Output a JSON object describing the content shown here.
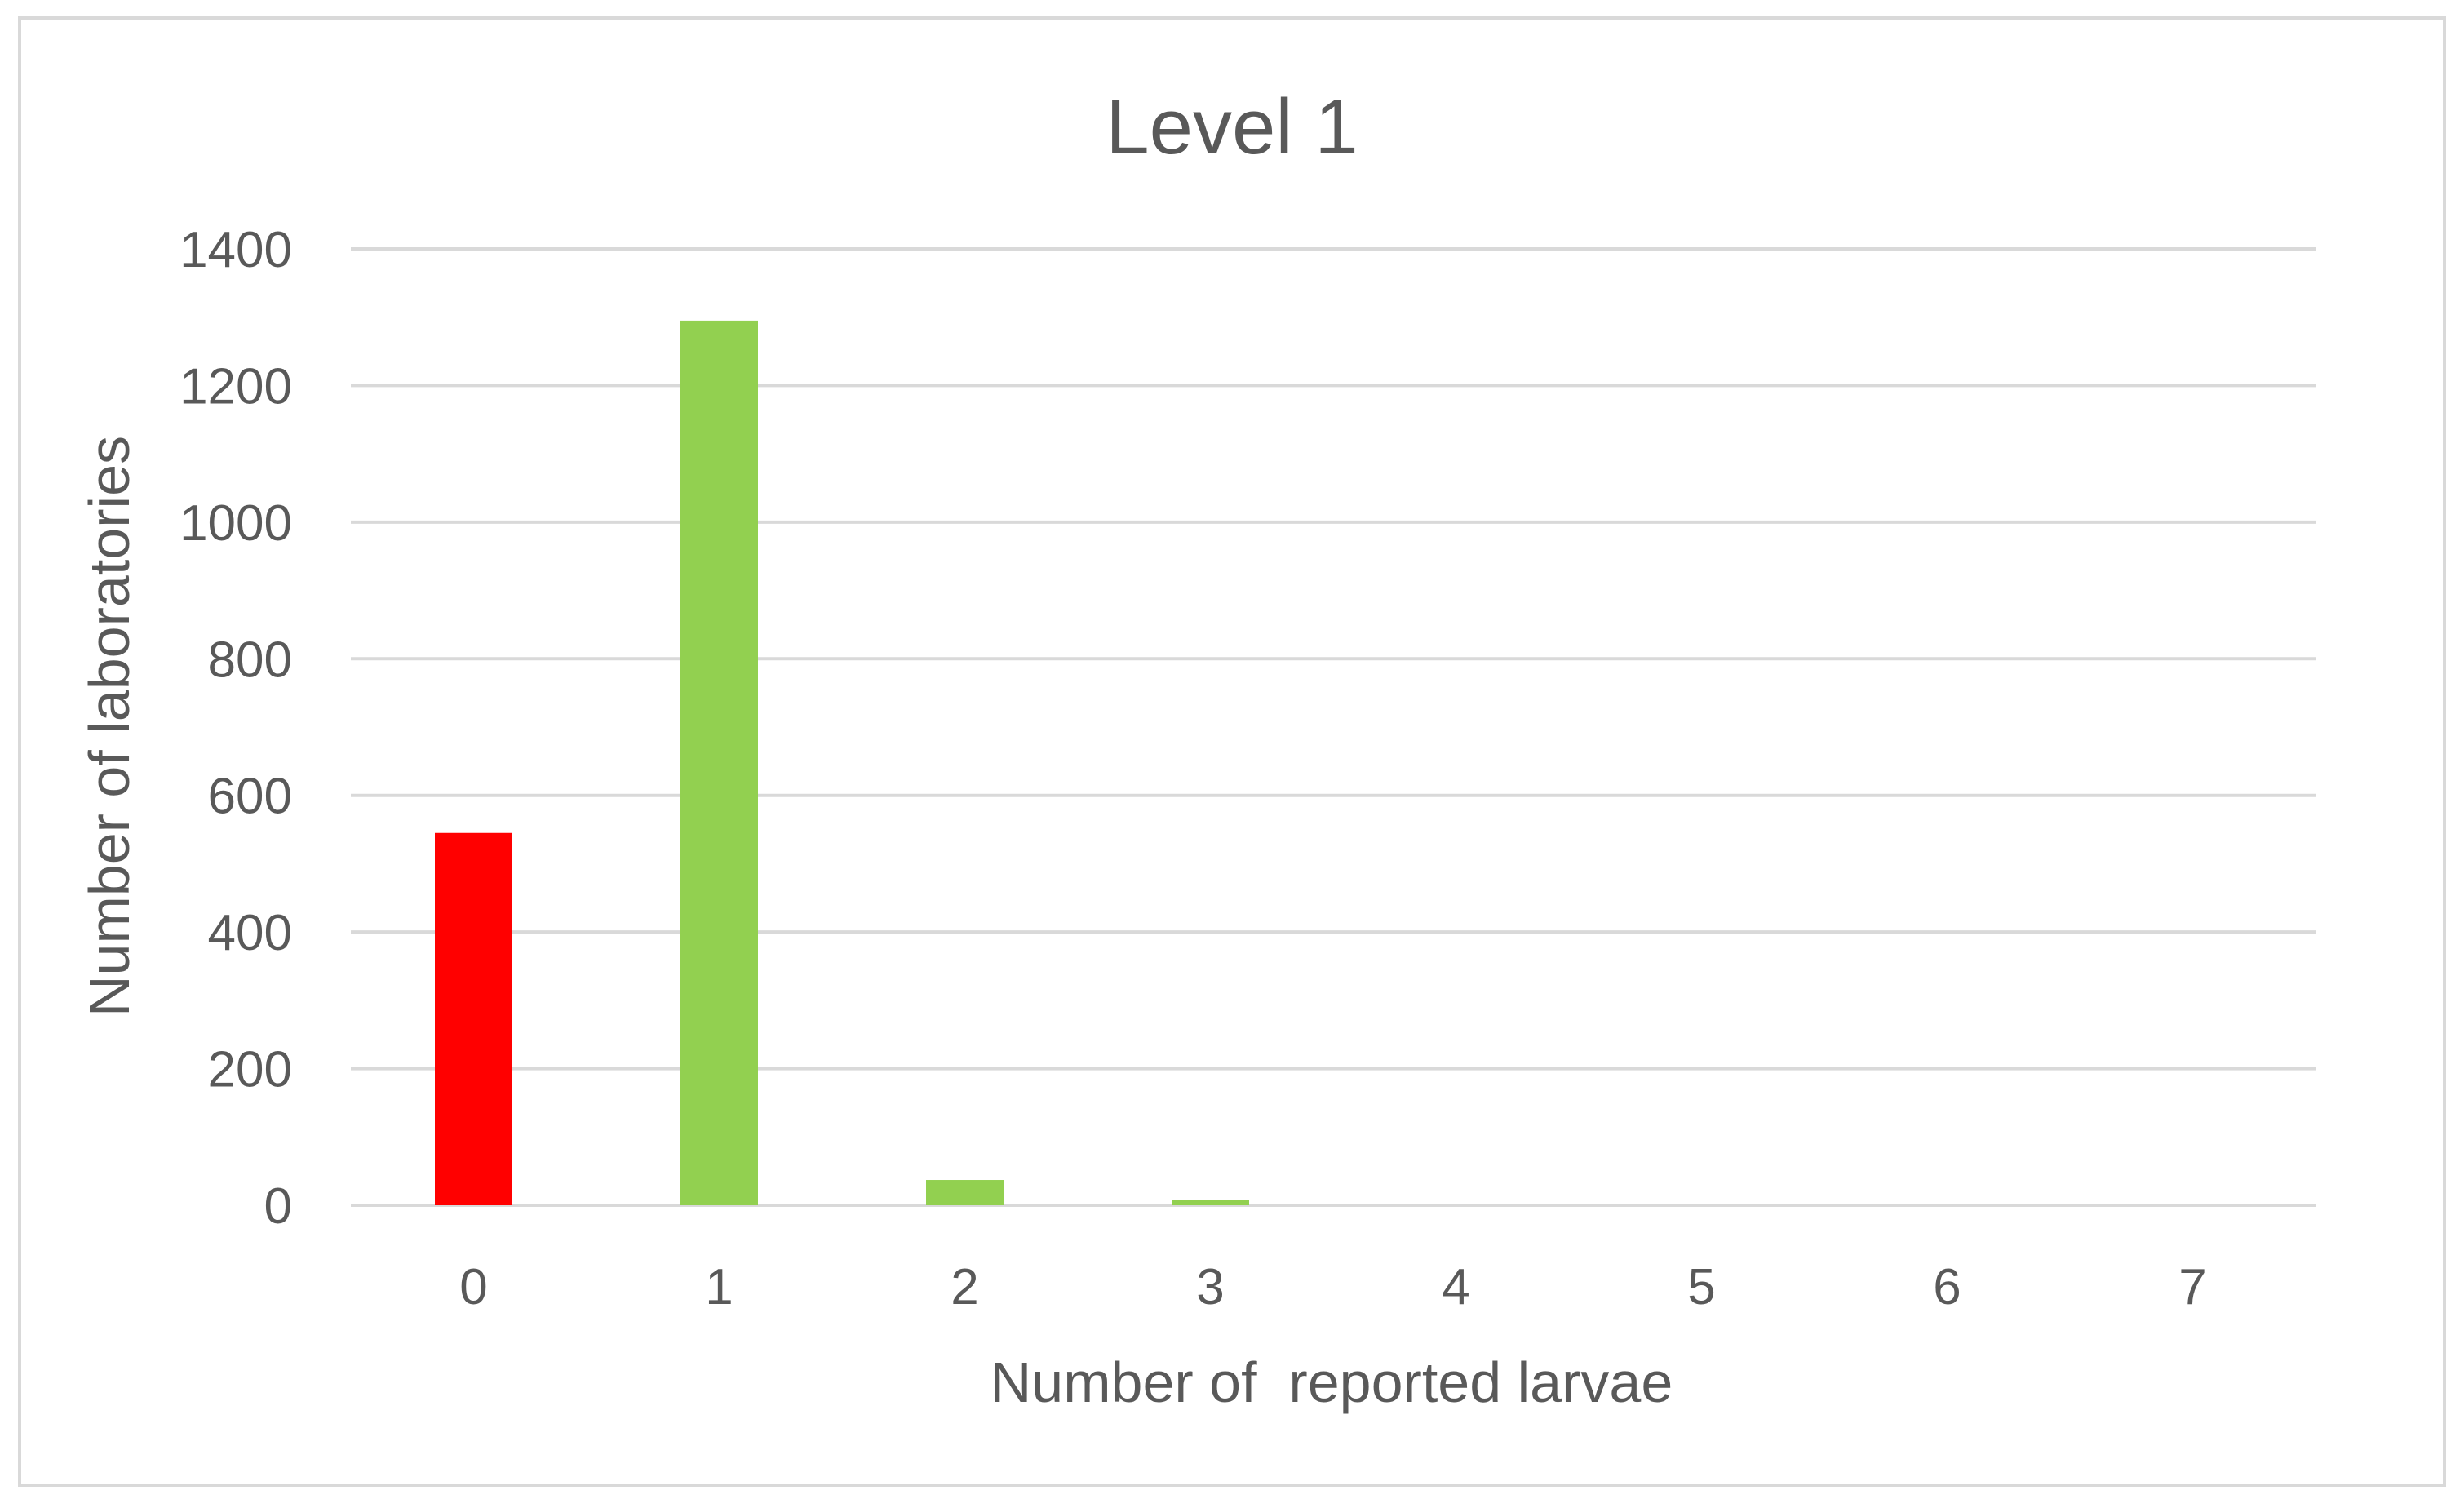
{
  "chart_data": {
    "type": "bar",
    "title": "Level 1",
    "xlabel": "Number of  reported larvae",
    "ylabel": "Number of laboratories",
    "categories": [
      "0",
      "1",
      "2",
      "3",
      "4",
      "5",
      "6",
      "7"
    ],
    "values": [
      545,
      1295,
      37,
      8,
      0,
      0,
      0,
      0
    ],
    "bar_colors": [
      "#ff0000",
      "#92d050",
      "#92d050",
      "#92d050",
      "#92d050",
      "#92d050",
      "#92d050",
      "#92d050"
    ],
    "ylim": [
      0,
      1400
    ],
    "yticks": [
      0,
      200,
      400,
      600,
      800,
      1000,
      1200,
      1400
    ],
    "grid": true,
    "legend": "none"
  },
  "colors": {
    "text": "#595959",
    "grid": "#d9d9d9",
    "border": "#d9d9d9"
  }
}
